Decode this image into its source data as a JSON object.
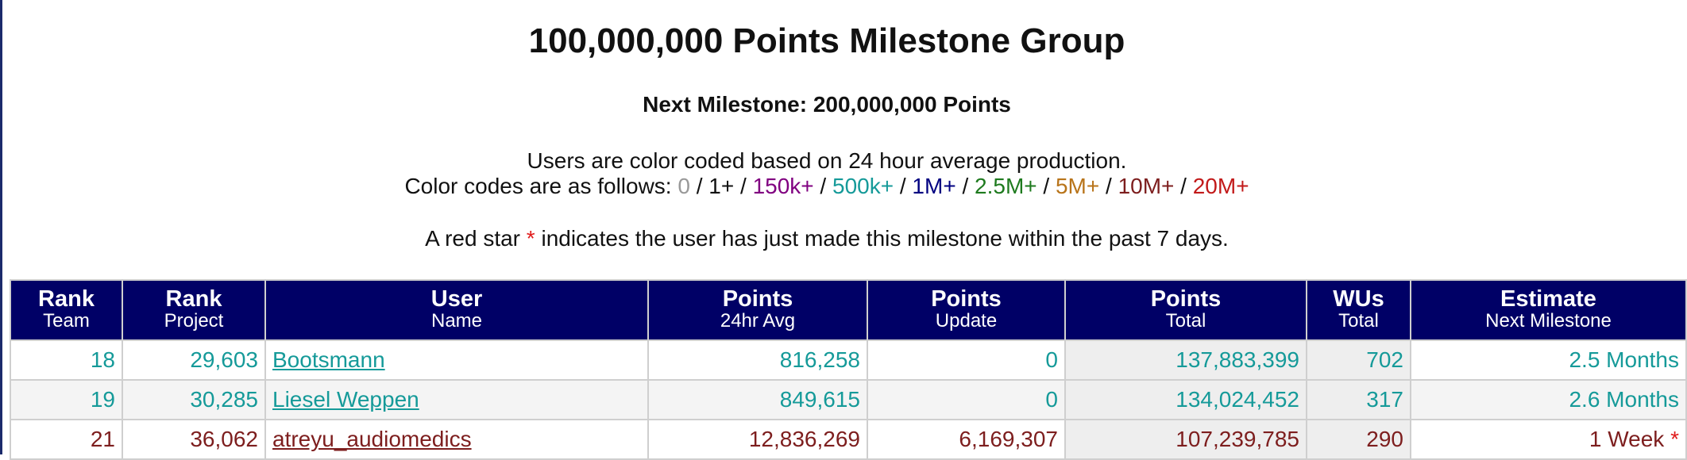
{
  "header": {
    "title": "100,000,000 Points Milestone Group",
    "next_milestone": "Next Milestone: 200,000,000 Points",
    "color_coded_note": "Users are color coded based on 24 hour average production.",
    "color_codes_intro": "Color codes are as follows:",
    "color_codes": [
      {
        "label": "0",
        "color": "#999999"
      },
      {
        "label": "1+",
        "color": "#111111"
      },
      {
        "label": "150k+",
        "color": "#800080"
      },
      {
        "label": "500k+",
        "color": "#159a99"
      },
      {
        "label": "1M+",
        "color": "#000080"
      },
      {
        "label": "2.5M+",
        "color": "#1e7a1e"
      },
      {
        "label": "5M+",
        "color": "#b8741a"
      },
      {
        "label": "10M+",
        "color": "#7d1e1e"
      },
      {
        "label": "20M+",
        "color": "#c21a1a"
      }
    ],
    "star_prefix": "A red star",
    "star_symbol": "*",
    "star_suffix": "indicates the user has just made this milestone within the past 7 days."
  },
  "table": {
    "header_bg": "#000066",
    "columns": [
      {
        "top": "Rank",
        "bottom": "Team"
      },
      {
        "top": "Rank",
        "bottom": "Project"
      },
      {
        "top": "User",
        "bottom": "Name"
      },
      {
        "top": "Points",
        "bottom": "24hr Avg"
      },
      {
        "top": "Points",
        "bottom": "Update"
      },
      {
        "top": "Points",
        "bottom": "Total"
      },
      {
        "top": "WUs",
        "bottom": "Total"
      },
      {
        "top": "Estimate",
        "bottom": "Next Milestone"
      }
    ],
    "rows": [
      {
        "rank_team": "18",
        "rank_project": "29,603",
        "user": "Bootsmann",
        "avg24": "816,258",
        "update": "0",
        "total": "137,883,399",
        "wus": "702",
        "estimate": "2.5 Months",
        "color": "#159a99"
      },
      {
        "rank_team": "19",
        "rank_project": "30,285",
        "user": "Liesel Weppen",
        "avg24": "849,615",
        "update": "0",
        "total": "134,024,452",
        "wus": "317",
        "estimate": "2.6 Months",
        "color": "#159a99"
      },
      {
        "rank_team": "21",
        "rank_project": "36,062",
        "user": "atreyu_audiomedics",
        "avg24": "12,836,269",
        "update": "6,169,307",
        "total": "107,239,785",
        "wus": "290",
        "estimate": "1 Week",
        "estimate_star": "*",
        "color": "#7d1e1e"
      }
    ]
  }
}
